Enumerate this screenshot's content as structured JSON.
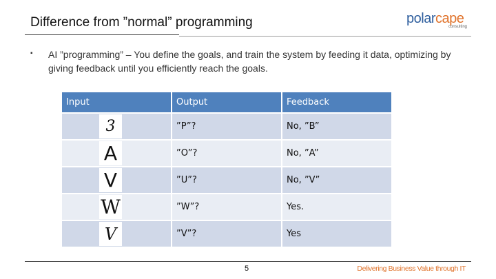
{
  "slide": {
    "title": "Difference from ”normal” programming",
    "bullet_marker": "▪",
    "bullet": "AI ”programming” – You define the goals, and train the system by feeding it data, optimizing by giving feedback until you efficiently reach the goals."
  },
  "logo": {
    "part1": "polar",
    "part2": "cape",
    "sub": "consulting",
    "colors": {
      "blue": "#2f5f9e",
      "orange": "#e0722a"
    }
  },
  "table": {
    "headers": [
      "Input",
      "Output",
      "Feedback"
    ],
    "rows": [
      {
        "input_glyph": "3",
        "output": "”P”?",
        "feedback": "No, ”B”"
      },
      {
        "input_glyph": "A",
        "output": "”O”?",
        "feedback": "No, ”A”"
      },
      {
        "input_glyph": "V",
        "output": "”U”?",
        "feedback": "No, ”V”"
      },
      {
        "input_glyph": "W",
        "output": "”W”?",
        "feedback": "Yes."
      },
      {
        "input_glyph": "V",
        "output": "”V”?",
        "feedback": "Yes"
      }
    ],
    "colors": {
      "header": "#4f81bd",
      "row_dark": "#d0d8e8",
      "row_light": "#e9edf4"
    }
  },
  "footer": {
    "page_number": "5",
    "tagline": "Delivering Business Value through IT"
  }
}
